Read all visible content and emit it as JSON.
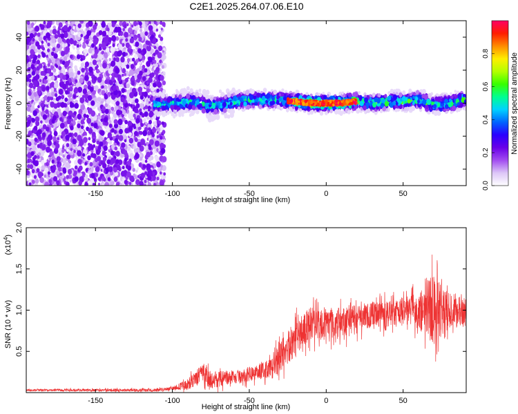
{
  "title": "C2E1.2025.264.07.06.E10",
  "chart_data": [
    {
      "type": "heatmap",
      "xlabel": "Height of straight line (km)",
      "ylabel": "Frequency (Hz)",
      "xlim": [
        -195,
        91
      ],
      "ylim": [
        -50,
        50
      ],
      "xticks": [
        -150,
        -100,
        -50,
        0,
        50
      ],
      "yticks": [
        -40,
        -20,
        0,
        20,
        40
      ],
      "ridge": [
        [
          -110,
          -1
        ],
        [
          -95,
          0
        ],
        [
          -85,
          1
        ],
        [
          -75,
          -2
        ],
        [
          -60,
          1
        ],
        [
          -50,
          2
        ],
        [
          -40,
          2
        ],
        [
          -30,
          2
        ],
        [
          -20,
          1
        ],
        [
          -10,
          0
        ],
        [
          0,
          0
        ],
        [
          10,
          0
        ],
        [
          20,
          1
        ],
        [
          30,
          0
        ],
        [
          40,
          1
        ],
        [
          50,
          1
        ],
        [
          60,
          2
        ],
        [
          70,
          -1
        ],
        [
          80,
          0
        ],
        [
          90,
          2
        ]
      ],
      "colorbar": {
        "label": "Normalized spectral amplitude",
        "range": [
          0,
          1
        ],
        "ticks": [
          "0.0",
          "0.2",
          "0.4",
          "0.6",
          "0.8"
        ],
        "colors": [
          "#ffffff",
          "#dcc6f7",
          "#a24cf0",
          "#6a00e8",
          "#2a00ff",
          "#0064ff",
          "#00d2ff",
          "#00ff90",
          "#38ff00",
          "#b4ff00",
          "#ffee00",
          "#ff8c00",
          "#ff1e00",
          "#ff0064"
        ]
      }
    },
    {
      "type": "line",
      "xlabel": "Height of straight line (km)",
      "ylabel": "SNR (10 * v/v)",
      "multiplier": "(x10",
      "exponent": "4",
      "multiplier_close": ")",
      "xlim": [
        -195,
        91
      ],
      "ylim": [
        0,
        2.0
      ],
      "xticks": [
        -150,
        -100,
        -50,
        0,
        50
      ],
      "yticks": [
        "0.5",
        "1.0",
        "1.5",
        "2.0"
      ],
      "color": "#ee3333",
      "series": [
        {
          "points": [
            [
              -195,
              0.03
            ],
            [
              -150,
              0.03
            ],
            [
              -110,
              0.03
            ],
            [
              -100,
              0.05
            ],
            [
              -90,
              0.1
            ],
            [
              -80,
              0.25
            ],
            [
              -75,
              0.15
            ],
            [
              -65,
              0.18
            ],
            [
              -55,
              0.2
            ],
            [
              -45,
              0.25
            ],
            [
              -35,
              0.3
            ],
            [
              -28,
              0.5
            ],
            [
              -20,
              0.65
            ],
            [
              -15,
              0.75
            ],
            [
              -10,
              0.85
            ],
            [
              0,
              0.85
            ],
            [
              10,
              0.85
            ],
            [
              20,
              0.9
            ],
            [
              30,
              0.95
            ],
            [
              40,
              0.95
            ],
            [
              50,
              1.0
            ],
            [
              60,
              1.0
            ],
            [
              65,
              1.05
            ],
            [
              70,
              1.0
            ],
            [
              80,
              1.0
            ],
            [
              91,
              1.0
            ]
          ],
          "noise": [
            [
              -195,
              0.01
            ],
            [
              -100,
              0.02
            ],
            [
              -80,
              0.12
            ],
            [
              -60,
              0.08
            ],
            [
              -40,
              0.1
            ],
            [
              -25,
              0.22
            ],
            [
              -10,
              0.2
            ],
            [
              10,
              0.18
            ],
            [
              30,
              0.16
            ],
            [
              50,
              0.15
            ],
            [
              60,
              0.25
            ],
            [
              70,
              0.45
            ],
            [
              80,
              0.22
            ],
            [
              91,
              0.2
            ]
          ]
        }
      ]
    }
  ]
}
